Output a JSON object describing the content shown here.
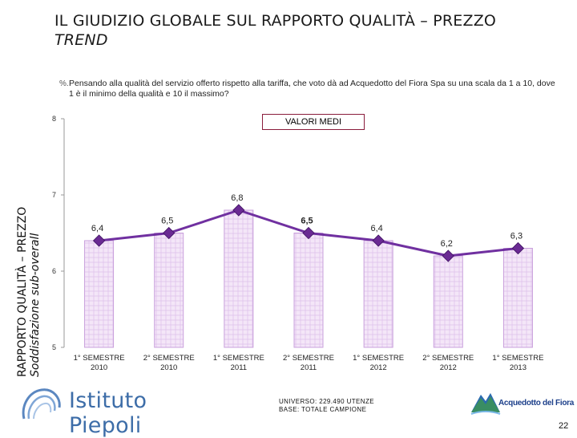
{
  "title": {
    "main": "IL GIUDIZIO GLOBALE SUL RAPPORTO QUALITÀ – PREZZO",
    "sub": "TREND"
  },
  "question": {
    "icon": "%.",
    "text": "Pensando alla qualità del servizio offerto rispetto alla tariffa, che voto dà ad Acquedotto del Fiora Spa su una scala da 1 a 10, dove 1 è il minimo della qualità e 10 il massimo?"
  },
  "side_label": {
    "line1": "RAPPORTO QUALITÀ – PREZZO",
    "line2": "Soddisfazione sub-overall"
  },
  "badge": "VALORI MEDI",
  "chart_data": {
    "type": "bar",
    "categories": [
      [
        "1° SEMESTRE",
        "2010"
      ],
      [
        "2° SEMESTRE",
        "2010"
      ],
      [
        "1° SEMESTRE",
        "2011"
      ],
      [
        "2° SEMESTRE",
        "2011"
      ],
      [
        "1° SEMESTRE",
        "2012"
      ],
      [
        "2° SEMESTRE",
        "2012"
      ],
      [
        "1° SEMESTRE",
        "2013"
      ]
    ],
    "values": [
      6.4,
      6.5,
      6.8,
      6.5,
      6.4,
      6.2,
      6.3
    ],
    "labels": [
      "6,4",
      "6,5",
      "6,8",
      "6,5",
      "6,4",
      "6,2",
      "6,3"
    ],
    "overlay": "line",
    "ylim": [
      5,
      8
    ],
    "yticks": [
      5,
      6,
      7,
      8
    ],
    "title": "",
    "xlabel": "",
    "ylabel": "",
    "colors": {
      "bar_fill": "#f2e4f7",
      "bar_stroke": "#c9a0dc",
      "line": "#7030a0",
      "marker": "#6a2a93"
    }
  },
  "universe": {
    "line1": "UNIVERSO: 229.490 UTENZE",
    "line2": "BASE: TOTALE CAMPIONE"
  },
  "logo_left": "Istituto Piepoli",
  "logo_right": "Acquedotto del Fiora",
  "page_number": "22"
}
